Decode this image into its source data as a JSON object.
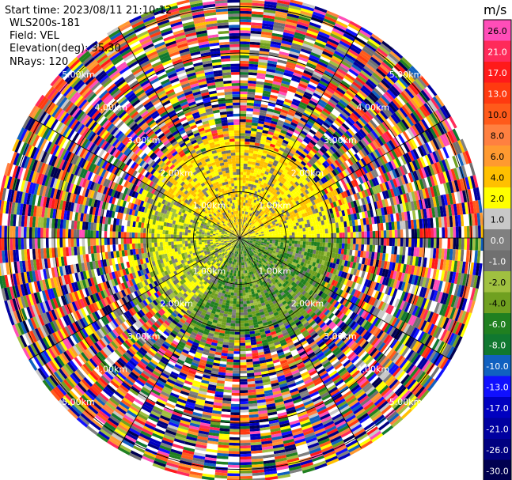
{
  "header": {
    "start_time": "Start time: 2023/08/11 21:10:12",
    "instrument": "WLS200s-181",
    "field": "Field: VEL",
    "elevation": "Elevation(deg): 35.30",
    "nrays": "NRays: 120"
  },
  "colorbar": {
    "unit": "m/s",
    "ticks": [
      "26.0",
      "21.0",
      "17.0",
      "13.0",
      "10.0",
      "8.0",
      "6.0",
      "4.0",
      "2.0",
      "1.0",
      "0.0",
      "-1.0",
      "-2.0",
      "-4.0",
      "-6.0",
      "-8.0",
      "-10.0",
      "-13.0",
      "-17.0",
      "-21.0",
      "-26.0",
      "-30.0"
    ],
    "colors": [
      "#ff4db8",
      "#ff2a5a",
      "#ff1a1a",
      "#ff3a10",
      "#ff5a1a",
      "#ff8040",
      "#ff9a30",
      "#ffc000",
      "#ffff00",
      "#c8c8c8",
      "#808080",
      "#707070",
      "#a0c040",
      "#70a020",
      "#208020",
      "#107830",
      "#1060c0",
      "#1010ff",
      "#0000c0",
      "#0000a0",
      "#000080",
      "#000050"
    ]
  },
  "rings": {
    "labels": [
      "1.00km",
      "2.00km",
      "3.00km",
      "4.00km",
      "5.00km"
    ]
  },
  "chart_data": {
    "type": "heatmap",
    "title": "",
    "field": "VEL",
    "units": "m/s",
    "elevation_deg": 35.3,
    "nrays": 120,
    "range_rings_km": [
      1,
      2,
      3,
      4,
      5
    ],
    "ray_spacing_deg": 3,
    "colorbar_ticks": [
      26,
      21,
      17,
      13,
      10,
      8,
      6,
      4,
      2,
      1,
      0,
      -1,
      -2,
      -4,
      -6,
      -8,
      -10,
      -13,
      -17,
      -21,
      -26,
      -30
    ],
    "regions": [
      {
        "sector": "north (approx. -70 to 70 deg)",
        "range_km": [
          0.3,
          2.4
        ],
        "velocity_m_s": [
          2,
          6
        ]
      },
      {
        "sector": "south-east (approx. 90 to 200 deg)",
        "range_km": [
          0.3,
          2.4
        ],
        "velocity_m_s": [
          -6,
          -1
        ]
      },
      {
        "sector": "all",
        "range_km": [
          2.4,
          5.3
        ],
        "velocity_m_s": "noisy"
      }
    ]
  }
}
